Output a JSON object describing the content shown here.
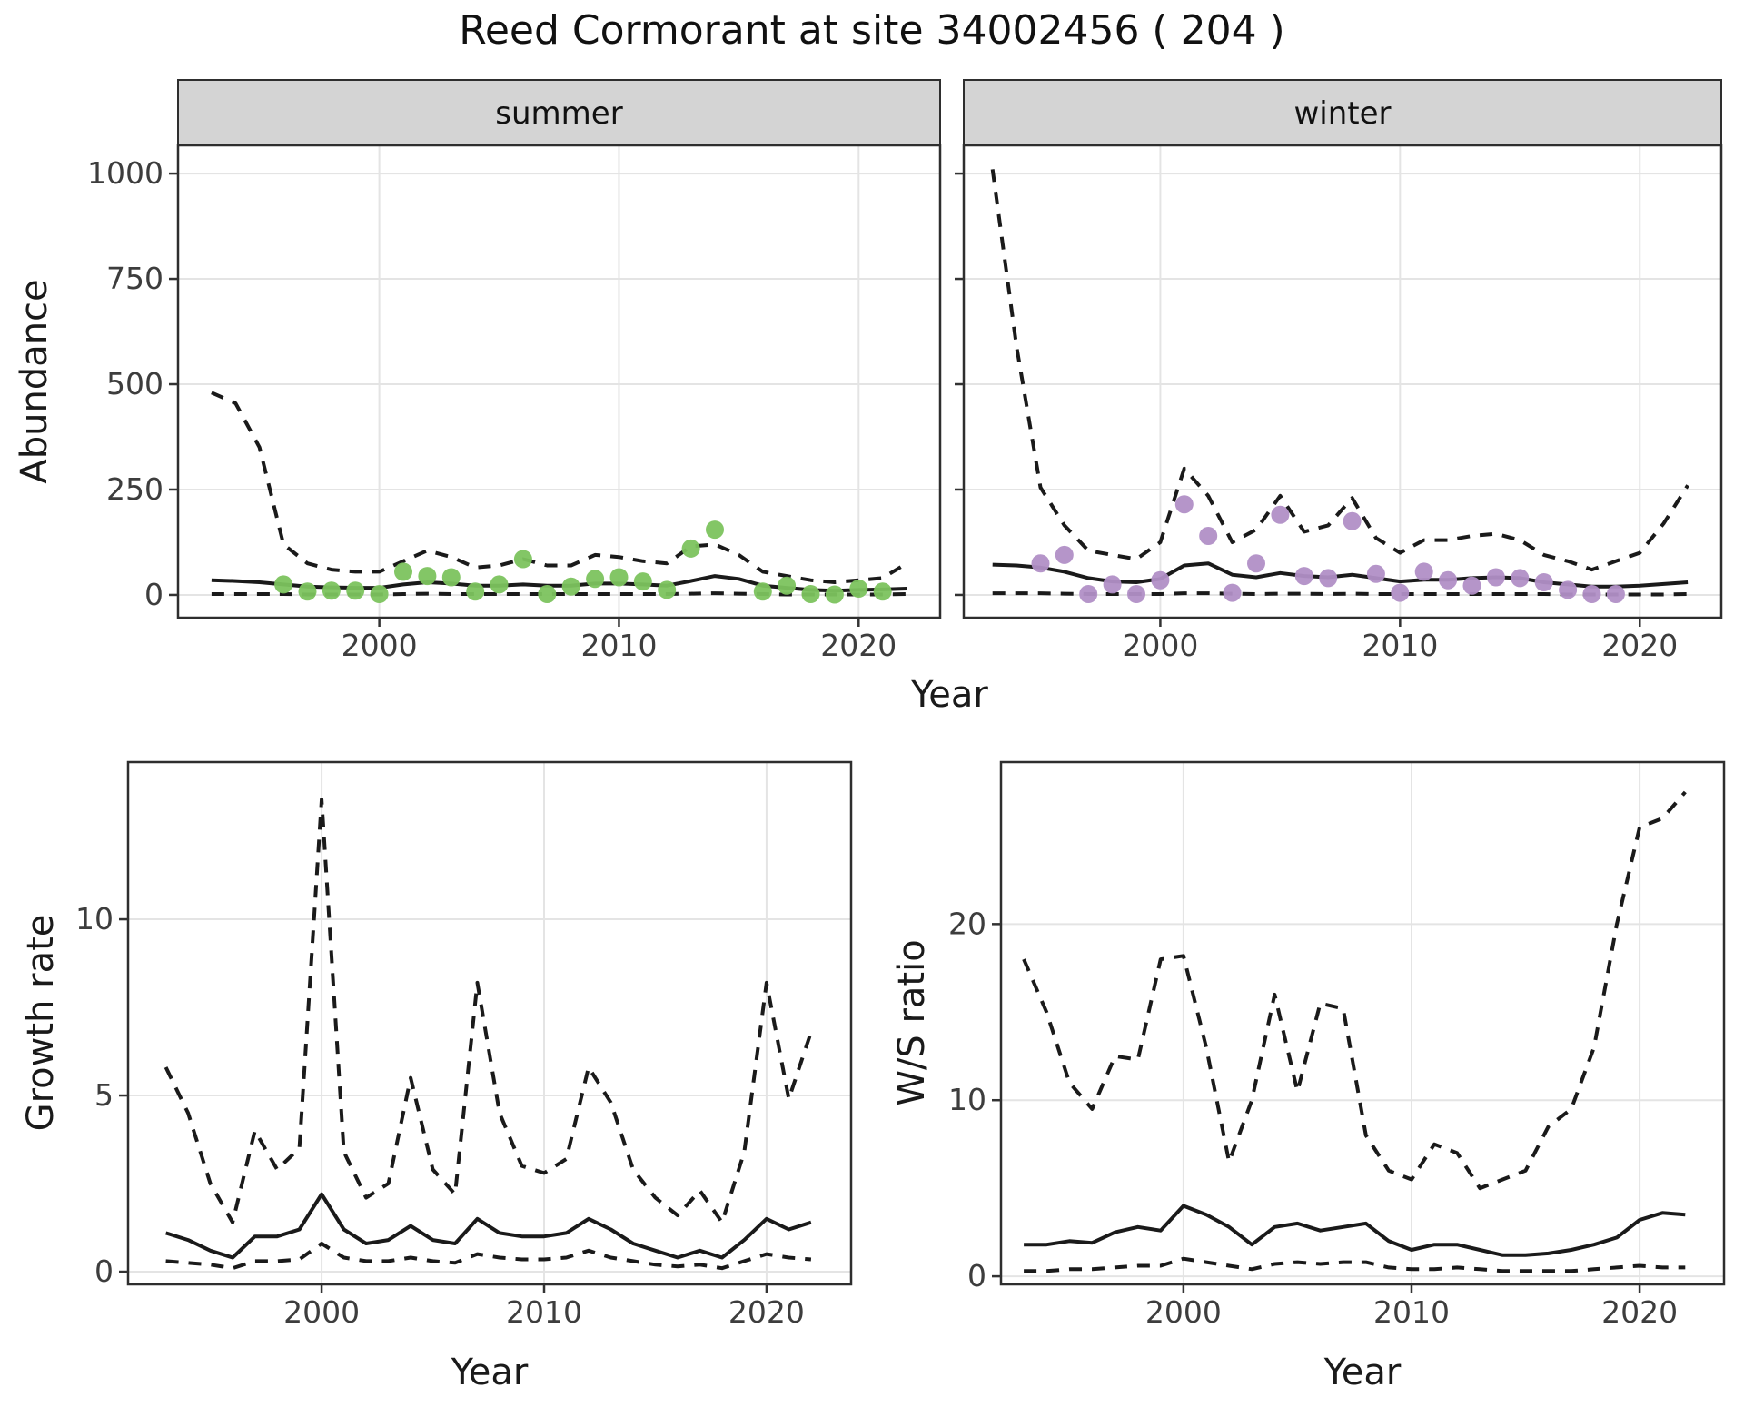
{
  "title": "Reed Cormorant at site 34002456 ( 204 )",
  "axis_labels": {
    "abundance": "Abundance",
    "year_top": "Year",
    "growth_rate": "Growth rate",
    "year_bottom_left": "Year",
    "ws_ratio": "W/S ratio",
    "year_bottom_right": "Year"
  },
  "colors": {
    "summer_point": "#7cc35e",
    "winter_point": "#b18fc6",
    "line": "#1a1a1a",
    "grid": "#e4e4e4",
    "strip_bg": "#d4d4d4",
    "panel_border": "#2e2e2e",
    "tick_text": "#3d3d3d"
  },
  "chart_data": [
    {
      "id": "abundance_summer",
      "type": "line",
      "facet_label": "summer",
      "xlabel": "Year",
      "ylabel": "Abundance",
      "x": [
        1993,
        1994,
        1995,
        1996,
        1997,
        1998,
        1999,
        2000,
        2001,
        2002,
        2003,
        2004,
        2005,
        2006,
        2007,
        2008,
        2009,
        2010,
        2011,
        2012,
        2013,
        2014,
        2015,
        2016,
        2017,
        2018,
        2019,
        2020,
        2021,
        2022
      ],
      "series": [
        {
          "name": "upper_ci",
          "style": "dashed",
          "values": [
            480,
            455,
            350,
            120,
            75,
            60,
            55,
            55,
            80,
            105,
            90,
            65,
            70,
            85,
            70,
            70,
            95,
            90,
            80,
            75,
            115,
            120,
            95,
            55,
            45,
            35,
            30,
            35,
            40,
            75
          ]
        },
        {
          "name": "median",
          "style": "solid",
          "values": [
            35,
            33,
            30,
            25,
            20,
            18,
            17,
            17,
            25,
            30,
            27,
            22,
            22,
            25,
            22,
            22,
            27,
            27,
            25,
            22,
            33,
            45,
            38,
            22,
            17,
            12,
            10,
            12,
            13,
            15
          ]
        },
        {
          "name": "lower_ci",
          "style": "dashed",
          "values": [
            2,
            2,
            2,
            2,
            1,
            1,
            1,
            1,
            2,
            3,
            2,
            2,
            2,
            2,
            2,
            2,
            2,
            2,
            2,
            2,
            3,
            4,
            3,
            2,
            1,
            1,
            1,
            1,
            1,
            2
          ]
        }
      ],
      "points": {
        "name": "observed_counts",
        "x": [
          1996,
          1997,
          1998,
          1999,
          2000,
          2001,
          2002,
          2003,
          2004,
          2005,
          2006,
          2007,
          2008,
          2009,
          2010,
          2011,
          2012,
          2013,
          2014,
          2016,
          2017,
          2018,
          2019,
          2020,
          2021
        ],
        "y": [
          25,
          8,
          10,
          10,
          2,
          55,
          45,
          42,
          8,
          25,
          85,
          2,
          20,
          38,
          42,
          32,
          12,
          110,
          155,
          8,
          22,
          2,
          1,
          15,
          8
        ],
        "color": "#7cc35e"
      },
      "xticks": [
        2000,
        2010,
        2020
      ],
      "yticks": [
        0,
        250,
        500,
        750,
        1000
      ],
      "xlim": [
        1991.6,
        2023.4
      ],
      "ylim": [
        -54,
        1067
      ]
    },
    {
      "id": "abundance_winter",
      "type": "line",
      "facet_label": "winter",
      "xlabel": "Year",
      "ylabel": "Abundance",
      "x": [
        1993,
        1994,
        1995,
        1996,
        1997,
        1998,
        1999,
        2000,
        2001,
        2002,
        2003,
        2004,
        2005,
        2006,
        2007,
        2008,
        2009,
        2010,
        2011,
        2012,
        2013,
        2014,
        2015,
        2016,
        2017,
        2018,
        2019,
        2020,
        2021,
        2022
      ],
      "series": [
        {
          "name": "upper_ci",
          "style": "dashed",
          "values": [
            1010,
            590,
            255,
            165,
            105,
            95,
            85,
            125,
            300,
            235,
            125,
            155,
            235,
            150,
            165,
            230,
            135,
            100,
            130,
            130,
            140,
            145,
            130,
            95,
            80,
            60,
            80,
            100,
            170,
            260
          ]
        },
        {
          "name": "median",
          "style": "solid",
          "values": [
            72,
            70,
            65,
            55,
            40,
            32,
            30,
            38,
            70,
            75,
            48,
            42,
            52,
            45,
            42,
            48,
            40,
            32,
            36,
            36,
            40,
            42,
            40,
            30,
            25,
            20,
            20,
            22,
            26,
            30
          ]
        },
        {
          "name": "lower_ci",
          "style": "dashed",
          "values": [
            4,
            4,
            4,
            3,
            2,
            2,
            2,
            2,
            4,
            4,
            3,
            2,
            3,
            3,
            2,
            3,
            2,
            2,
            2,
            2,
            2,
            2,
            2,
            2,
            1,
            1,
            1,
            1,
            1,
            2
          ]
        }
      ],
      "points": {
        "name": "observed_counts",
        "x": [
          1995,
          1996,
          1997,
          1998,
          1999,
          2000,
          2001,
          2002,
          2003,
          2004,
          2005,
          2006,
          2007,
          2008,
          2009,
          2010,
          2011,
          2012,
          2013,
          2014,
          2015,
          2016,
          2017,
          2018,
          2019
        ],
        "y": [
          75,
          95,
          2,
          25,
          2,
          35,
          215,
          140,
          5,
          75,
          190,
          45,
          40,
          175,
          50,
          5,
          55,
          35,
          22,
          42,
          40,
          30,
          12,
          2,
          2
        ],
        "color": "#b18fc6"
      },
      "xticks": [
        2000,
        2010,
        2020
      ],
      "yticks": [
        0,
        250,
        500,
        750,
        1000
      ],
      "xlim": [
        1991.8,
        2023.4
      ],
      "ylim": [
        -54,
        1067
      ]
    },
    {
      "id": "growth_rate",
      "type": "line",
      "facet_label": "",
      "xlabel": "Year",
      "ylabel": "Growth rate",
      "x": [
        1993,
        1994,
        1995,
        1996,
        1997,
        1998,
        1999,
        2000,
        2001,
        2002,
        2003,
        2004,
        2005,
        2006,
        2007,
        2008,
        2009,
        2010,
        2011,
        2012,
        2013,
        2014,
        2015,
        2016,
        2017,
        2018,
        2019,
        2020,
        2021,
        2022
      ],
      "series": [
        {
          "name": "upper_ci",
          "style": "dashed",
          "values": [
            5.8,
            4.5,
            2.5,
            1.4,
            4.0,
            2.9,
            3.5,
            13.4,
            3.4,
            2.1,
            2.5,
            5.5,
            2.9,
            2.2,
            8.2,
            4.5,
            3.0,
            2.8,
            3.2,
            5.8,
            4.8,
            2.9,
            2.1,
            1.6,
            2.3,
            1.4,
            3.4,
            8.2,
            4.9,
            6.8
          ]
        },
        {
          "name": "median",
          "style": "solid",
          "values": [
            1.1,
            0.9,
            0.6,
            0.4,
            1.0,
            1.0,
            1.2,
            2.2,
            1.2,
            0.8,
            0.9,
            1.3,
            0.9,
            0.8,
            1.5,
            1.1,
            1.0,
            1.0,
            1.1,
            1.5,
            1.2,
            0.8,
            0.6,
            0.4,
            0.6,
            0.4,
            0.9,
            1.5,
            1.2,
            1.4
          ]
        },
        {
          "name": "lower_ci",
          "style": "dashed",
          "values": [
            0.3,
            0.25,
            0.2,
            0.1,
            0.3,
            0.3,
            0.35,
            0.8,
            0.4,
            0.3,
            0.3,
            0.4,
            0.3,
            0.25,
            0.5,
            0.4,
            0.35,
            0.35,
            0.4,
            0.6,
            0.4,
            0.3,
            0.2,
            0.15,
            0.2,
            0.1,
            0.3,
            0.5,
            0.4,
            0.35
          ]
        }
      ],
      "points": null,
      "xticks": [
        2000,
        2010,
        2020
      ],
      "yticks": [
        0,
        5,
        10
      ],
      "xlim": [
        1991.3,
        2023.8
      ],
      "ylim": [
        -0.36,
        14.46
      ]
    },
    {
      "id": "ws_ratio",
      "type": "line",
      "facet_label": "",
      "xlabel": "Year",
      "ylabel": "W/S ratio",
      "x": [
        1993,
        1994,
        1995,
        1996,
        1997,
        1998,
        1999,
        2000,
        2001,
        2002,
        2003,
        2004,
        2005,
        2006,
        2007,
        2008,
        2009,
        2010,
        2011,
        2012,
        2013,
        2014,
        2015,
        2016,
        2017,
        2018,
        2019,
        2020,
        2021,
        2022
      ],
      "series": [
        {
          "name": "upper_ci",
          "style": "dashed",
          "values": [
            18,
            15,
            11,
            9.5,
            12.5,
            12.3,
            18,
            18.2,
            13,
            6.5,
            10,
            16,
            10.5,
            15.5,
            15.2,
            8,
            6,
            5.5,
            7.5,
            7,
            5,
            5.5,
            6,
            8.5,
            9.5,
            13,
            20,
            25.5,
            26,
            27.5
          ]
        },
        {
          "name": "median",
          "style": "solid",
          "values": [
            1.8,
            1.8,
            2.0,
            1.9,
            2.5,
            2.8,
            2.6,
            4.0,
            3.5,
            2.8,
            1.8,
            2.8,
            3.0,
            2.6,
            2.8,
            3.0,
            2.0,
            1.5,
            1.8,
            1.8,
            1.5,
            1.2,
            1.2,
            1.3,
            1.5,
            1.8,
            2.2,
            3.2,
            3.6,
            3.5
          ]
        },
        {
          "name": "lower_ci",
          "style": "dashed",
          "values": [
            0.3,
            0.3,
            0.4,
            0.4,
            0.5,
            0.6,
            0.6,
            1.0,
            0.8,
            0.6,
            0.4,
            0.7,
            0.8,
            0.7,
            0.8,
            0.8,
            0.5,
            0.4,
            0.4,
            0.5,
            0.4,
            0.3,
            0.3,
            0.3,
            0.3,
            0.4,
            0.5,
            0.6,
            0.5,
            0.5
          ]
        }
      ],
      "points": null,
      "xticks": [
        2000,
        2010,
        2020
      ],
      "yticks": [
        0,
        10,
        20
      ],
      "xlim": [
        1992.0,
        2023.7
      ],
      "ylim": [
        -0.46,
        29.2
      ]
    }
  ]
}
